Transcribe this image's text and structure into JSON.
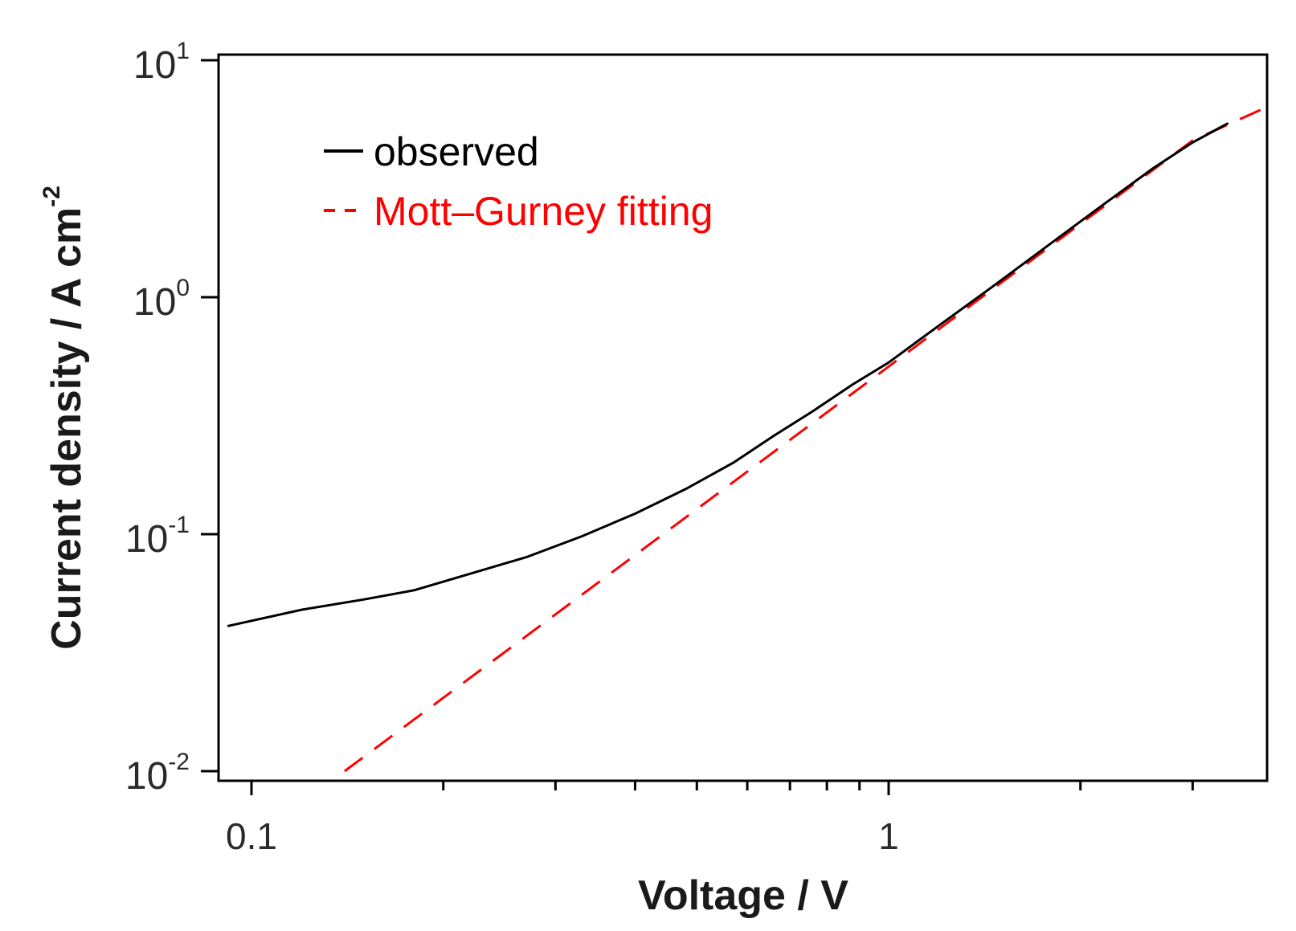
{
  "chart_data": {
    "type": "line",
    "x_scale": "log",
    "y_scale": "log",
    "xlabel": "Voltage / V",
    "ylabel_main": "Current density / A cm",
    "ylabel_exponent": "-2",
    "xlim": [
      0.09,
      4.0
    ],
    "ylim": [
      0.01,
      10
    ],
    "x_tick_labels": [
      "0.1",
      "1"
    ],
    "y_tick_labels": [
      {
        "base": "10",
        "exp": "1",
        "value": 10
      },
      {
        "base": "10",
        "exp": "0",
        "value": 1
      },
      {
        "base": "10",
        "exp": "-1",
        "value": 0.1
      },
      {
        "base": "10",
        "exp": "-2",
        "value": 0.01
      }
    ],
    "legend_position": "top-left",
    "series": [
      {
        "name": "observed",
        "color": "#000000",
        "style": "solid",
        "x": [
          0.092,
          0.12,
          0.15,
          0.18,
          0.22,
          0.27,
          0.33,
          0.4,
          0.48,
          0.57,
          0.66,
          0.76,
          0.88,
          1.0,
          1.2,
          1.45,
          1.75,
          2.1,
          2.6,
          3.0,
          3.4
        ],
        "y": [
          0.041,
          0.048,
          0.053,
          0.058,
          0.068,
          0.08,
          0.098,
          0.122,
          0.155,
          0.2,
          0.26,
          0.33,
          0.43,
          0.53,
          0.76,
          1.1,
          1.6,
          2.3,
          3.5,
          4.5,
          5.4
        ]
      },
      {
        "name": "Mott–Gurney fitting",
        "color": "#ff0000",
        "style": "dashed",
        "x": [
          0.14,
          0.2,
          0.3,
          0.5,
          0.7,
          1.0,
          1.5,
          2.0,
          3.0,
          3.9
        ],
        "y": [
          0.01,
          0.0204,
          0.0459,
          0.1276,
          0.25,
          0.51,
          1.148,
          2.04,
          4.59,
          6.3
        ]
      }
    ]
  }
}
